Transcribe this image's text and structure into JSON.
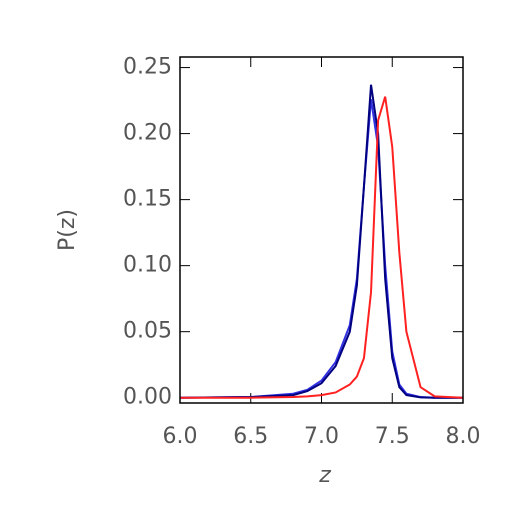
{
  "chart_data": {
    "type": "line",
    "xlabel": "z",
    "ylabel": "P(z)",
    "x": [
      6.0,
      6.5,
      6.8,
      6.9,
      7.0,
      7.1,
      7.2,
      7.25,
      7.3,
      7.35,
      7.4,
      7.45,
      7.5,
      7.55,
      7.6,
      7.7,
      7.8,
      8.0
    ],
    "series": [
      {
        "color": "#3030e0",
        "values": [
          0,
          0.0005,
          0.003,
          0.006,
          0.013,
          0.027,
          0.055,
          0.09,
          0.16,
          0.226,
          0.19,
          0.1,
          0.035,
          0.01,
          0.003,
          0.0005,
          0,
          0
        ]
      },
      {
        "color": "#000080",
        "values": [
          0,
          0.0005,
          0.002,
          0.005,
          0.011,
          0.024,
          0.05,
          0.085,
          0.16,
          0.237,
          0.2,
          0.09,
          0.03,
          0.008,
          0.002,
          0.0003,
          0,
          0
        ]
      },
      {
        "color": "#ff2020",
        "values": [
          0,
          0,
          0.0005,
          0.001,
          0.002,
          0.004,
          0.01,
          0.016,
          0.03,
          0.08,
          0.21,
          0.228,
          0.19,
          0.11,
          0.05,
          0.008,
          0.001,
          0
        ]
      }
    ],
    "xlim": [
      6.0,
      8.0
    ],
    "xticks": [
      {
        "value": 6.0,
        "label": "6.0"
      },
      {
        "value": 6.5,
        "label": "6.5"
      },
      {
        "value": 7.0,
        "label": "7.0"
      },
      {
        "value": 7.5,
        "label": "7.5"
      },
      {
        "value": 8.0,
        "label": "8.0"
      }
    ],
    "ylim": [
      -0.004,
      0.258
    ],
    "yticks": [
      {
        "value": 0.0,
        "label": "0.00"
      },
      {
        "value": 0.05,
        "label": "0.05"
      },
      {
        "value": 0.1,
        "label": "0.10"
      },
      {
        "value": 0.15,
        "label": "0.15"
      },
      {
        "value": 0.2,
        "label": "0.20"
      },
      {
        "value": 0.25,
        "label": "0.25"
      }
    ]
  }
}
